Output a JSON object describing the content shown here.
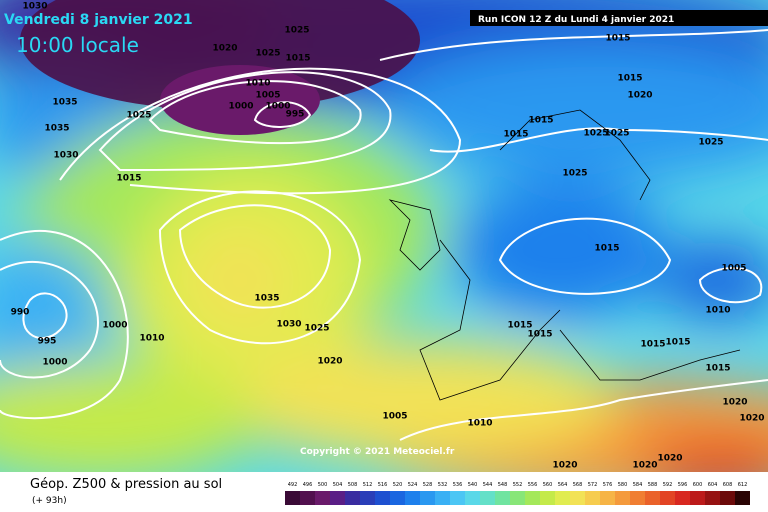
{
  "header": {
    "date": "Vendredi 8 janvier 2021",
    "time": "10:00 locale",
    "run": "Run ICON 12 Z du Lundi 4 janvier 2021"
  },
  "copyright": "Copyright © 2021 Meteociel.fr",
  "footer": {
    "title": "Géop. Z500 & pression au sol",
    "lead": "(+ 93h)"
  },
  "isobar_labels": [
    1030,
    1025,
    1020,
    1025,
    1015,
    1015,
    1015,
    1020,
    1010,
    1005,
    1000,
    1000,
    995,
    1035,
    1025,
    1035,
    1030,
    1015,
    1015,
    1015,
    1025,
    1025,
    1025,
    1025,
    1015,
    1005,
    1035,
    990,
    995,
    1000,
    1030,
    1025,
    1000,
    1010,
    1020,
    1015,
    1015,
    1010,
    1015,
    1015,
    1015,
    1005,
    1010,
    1020,
    1020,
    1020,
    1020,
    1020
  ],
  "scale": {
    "labels": [
      492,
      496,
      500,
      504,
      508,
      512,
      516,
      520,
      524,
      528,
      532,
      536,
      540,
      544,
      548,
      552,
      556,
      560,
      564,
      568,
      572,
      576,
      580,
      584,
      588,
      592,
      596,
      600,
      604,
      608,
      612
    ],
    "colors": [
      "#3a0a36",
      "#52104e",
      "#6a1a6a",
      "#5a1e86",
      "#3a2ca0",
      "#2a3eb8",
      "#1e50d0",
      "#1a66e0",
      "#1e80ec",
      "#2a98f0",
      "#3ab0f4",
      "#4cc6f4",
      "#5ad8e8",
      "#64e0c8",
      "#70e4a0",
      "#88e678",
      "#a4e85a",
      "#c4ea4a",
      "#e0ec50",
      "#f2e256",
      "#f6cc4e",
      "#f6b446",
      "#f49a3c",
      "#f07e32",
      "#ea622a",
      "#e24424",
      "#d82820",
      "#bc1a1a",
      "#961212",
      "#6c0a0a",
      "#2a0404"
    ]
  }
}
